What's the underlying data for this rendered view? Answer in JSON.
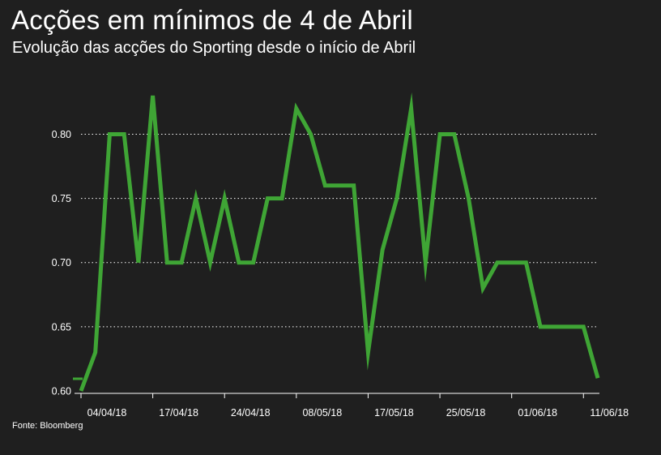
{
  "title": "Acções em mínimos de 4 de Abril",
  "subtitle": "Evolução das acções do Sporting desde o início de Abril",
  "source": "Fonte: Bloomberg",
  "colors": {
    "background": "#1f1f1f",
    "line": "#3fa535",
    "grid": "#ffffff",
    "text": "#ffffff"
  },
  "chart_data": {
    "type": "line",
    "title": "Acções em mínimos de 4 de Abril",
    "subtitle": "Evolução das acções do Sporting desde o início de Abril",
    "xlabel": "",
    "ylabel": "",
    "ylim": [
      0.6,
      0.83
    ],
    "grid": "horizontal dotted",
    "legend": "none",
    "y_ticks": [
      "0.60",
      "0.65",
      "0.70",
      "0.75",
      "0.80"
    ],
    "x_ticks": [
      {
        "label": "04/04/18",
        "index": 0
      },
      {
        "label": "17/04/18",
        "index": 5
      },
      {
        "label": "24/04/18",
        "index": 10
      },
      {
        "label": "08/05/18",
        "index": 15
      },
      {
        "label": "17/05/18",
        "index": 20
      },
      {
        "label": "25/05/18",
        "index": 25
      },
      {
        "label": "01/06/18",
        "index": 30
      },
      {
        "label": "11/06/18",
        "index": 35
      }
    ],
    "series": [
      {
        "values": [
          0.6,
          0.63,
          0.8,
          0.8,
          0.7,
          0.83,
          0.7,
          0.7,
          0.75,
          0.7,
          0.75,
          0.7,
          0.7,
          0.75,
          0.75,
          0.82,
          0.8,
          0.76,
          0.76,
          0.76,
          0.63,
          0.71,
          0.75,
          0.82,
          0.7,
          0.8,
          0.8,
          0.75,
          0.68,
          0.7,
          0.7,
          0.7,
          0.65,
          0.65,
          0.65,
          0.65,
          0.61
        ]
      }
    ]
  }
}
